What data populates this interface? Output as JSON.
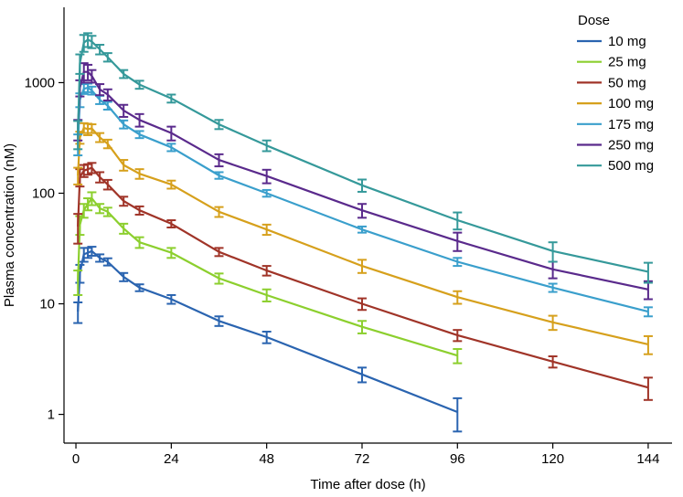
{
  "chart_data": {
    "type": "line",
    "scale": {
      "y": "log"
    },
    "xlabel": "Time after dose (h)",
    "ylabel": "Plasma concentration (nM)",
    "xlim": [
      -3,
      150
    ],
    "ylim": [
      0.55,
      4800
    ],
    "x_ticks": [
      0,
      24,
      48,
      72,
      96,
      120,
      144
    ],
    "y_ticks": [
      1,
      10,
      100,
      1000
    ],
    "legend_title": "Dose",
    "legend_position": "top-right",
    "series": [
      {
        "name": "10 mg",
        "color": "#2a64b0",
        "x": [
          0.5,
          1,
          2,
          3,
          4,
          6,
          8,
          12,
          16,
          24,
          36,
          48,
          72,
          96
        ],
        "y": [
          8.5,
          19,
          28,
          29,
          30,
          26,
          24,
          17.5,
          14,
          11,
          7,
          5,
          2.3,
          1.05
        ],
        "err": [
          1.8,
          3.5,
          4,
          3,
          2.8,
          2,
          1.8,
          1.5,
          1,
          1,
          0.7,
          0.6,
          0.35,
          0.35
        ]
      },
      {
        "name": "25 mg",
        "color": "#8ccf2e",
        "x": [
          0.5,
          1,
          2,
          3,
          4,
          6,
          8,
          12,
          16,
          24,
          36,
          48,
          72,
          96
        ],
        "y": [
          16,
          52,
          70,
          80,
          90,
          73,
          68,
          48,
          36,
          29,
          17,
          12,
          6.2,
          3.4
        ],
        "err": [
          4,
          10,
          10,
          10,
          12,
          7,
          6,
          5,
          4,
          3,
          1.8,
          1.5,
          0.8,
          0.5
        ]
      },
      {
        "name": "50 mg",
        "color": "#a03428",
        "x": [
          0.5,
          1,
          2,
          3,
          4,
          6,
          8,
          12,
          16,
          24,
          36,
          48,
          72,
          96,
          120,
          144
        ],
        "y": [
          50,
          140,
          160,
          165,
          170,
          140,
          120,
          85,
          70,
          53,
          29.5,
          20,
          10,
          5.2,
          3,
          1.75
        ],
        "err": [
          15,
          25,
          20,
          18,
          18,
          15,
          12,
          8,
          6,
          4,
          2.5,
          2,
          1.2,
          0.6,
          0.35,
          0.4
        ]
      },
      {
        "name": "100 mg",
        "color": "#d6a01c",
        "x": [
          0.5,
          1,
          2,
          3,
          4,
          6,
          8,
          12,
          16,
          24,
          36,
          48,
          72,
          96,
          120,
          144
        ],
        "y": [
          145,
          320,
          390,
          380,
          385,
          320,
          280,
          180,
          150,
          120,
          68,
          47,
          22,
          11.5,
          6.8,
          4.3
        ],
        "err": [
          25,
          40,
          40,
          45,
          35,
          30,
          25,
          20,
          15,
          10,
          7,
          5,
          3,
          1.5,
          1,
          0.8
        ]
      },
      {
        "name": "175 mg",
        "color": "#3a9fcc",
        "x": [
          0.5,
          1,
          2,
          3,
          4,
          6,
          8,
          12,
          16,
          24,
          36,
          48,
          72,
          96,
          120,
          144
        ],
        "y": [
          280,
          700,
          880,
          900,
          850,
          700,
          620,
          420,
          340,
          260,
          145,
          100,
          47,
          24,
          14,
          8.5
        ],
        "err": [
          60,
          100,
          90,
          80,
          70,
          60,
          50,
          35,
          25,
          20,
          10,
          7,
          3,
          2,
          1.2,
          0.8
        ]
      },
      {
        "name": "250 mg",
        "color": "#5a2a8c",
        "x": [
          0.5,
          1,
          2,
          3,
          4,
          6,
          8,
          12,
          16,
          24,
          36,
          48,
          72,
          96,
          120,
          144
        ],
        "y": [
          380,
          900,
          1250,
          1250,
          1150,
          870,
          780,
          560,
          460,
          350,
          200,
          143,
          70,
          37,
          20.5,
          13.5
        ],
        "err": [
          80,
          150,
          250,
          200,
          150,
          100,
          90,
          70,
          60,
          50,
          25,
          20,
          10,
          7,
          3.5,
          2.5
        ]
      },
      {
        "name": "500 mg",
        "color": "#35999a",
        "x": [
          0.5,
          1,
          2,
          3,
          4,
          6,
          8,
          12,
          16,
          24,
          36,
          48,
          72,
          96,
          120,
          144
        ],
        "y": [
          350,
          1500,
          2300,
          2450,
          2350,
          2000,
          1700,
          1200,
          960,
          720,
          420,
          270,
          118,
          57,
          30,
          19.5
        ],
        "err": [
          100,
          300,
          400,
          350,
          300,
          200,
          150,
          100,
          80,
          60,
          40,
          30,
          15,
          10,
          6,
          4
        ]
      }
    ]
  }
}
